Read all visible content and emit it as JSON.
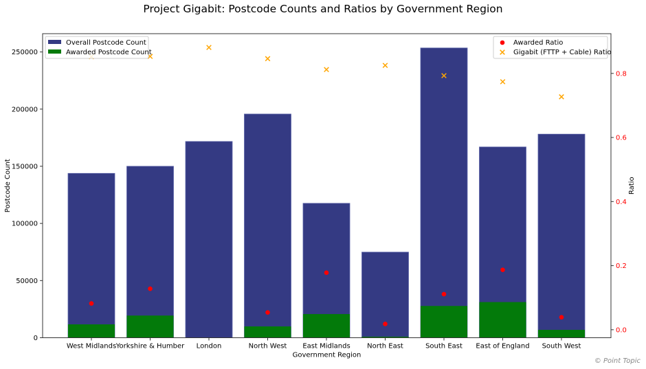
{
  "chart_data": {
    "type": "bar",
    "title": "Project Gigabit: Postcode Counts and Ratios by Government Region",
    "xlabel": "Government Region",
    "ylabel": "Postcode Count",
    "ylabel_right": "Ratio",
    "categories": [
      "West Midlands",
      "Yorkshire & Humber",
      "London",
      "North West",
      "East Midlands",
      "North East",
      "South East",
      "East of England",
      "South West"
    ],
    "ylim": [
      0,
      266000
    ],
    "ylim_right": [
      -0.025,
      0.924
    ],
    "yticks": [
      "0",
      "50000",
      "100000",
      "150000",
      "200000",
      "250000"
    ],
    "yticks_right": [
      "0.0",
      "0.2",
      "0.4",
      "0.6",
      "0.8"
    ],
    "grid": false,
    "series": [
      {
        "name": "Overall Postcode Count",
        "kind": "bar",
        "axis": "left",
        "color": "#343a83",
        "values": [
          143800,
          150000,
          171700,
          195700,
          117600,
          74900,
          253500,
          166900,
          178100
        ]
      },
      {
        "name": "Awarded Postcode Count",
        "kind": "bar",
        "axis": "left",
        "color": "#037a0a",
        "values": [
          11700,
          19400,
          0,
          9900,
          20700,
          900,
          27800,
          31200,
          6900
        ]
      },
      {
        "name": "Awarded Ratio",
        "kind": "scatter",
        "marker": "circle",
        "axis": "right",
        "color": "#ff0000",
        "values": [
          0.082,
          0.128,
          null,
          0.054,
          0.178,
          0.018,
          0.111,
          0.187,
          0.039
        ]
      },
      {
        "name": "Gigabit (FTTP + Cable) Ratio",
        "kind": "scatter",
        "marker": "x",
        "axis": "right",
        "color": "#ffa500",
        "values": [
          0.852,
          0.853,
          0.881,
          0.846,
          0.812,
          0.825,
          0.793,
          0.774,
          0.727
        ]
      }
    ],
    "legend_left": "top-left",
    "legend_right": "top-right",
    "right_tick_color": "#ff0000"
  },
  "credit": "© Point Topic"
}
